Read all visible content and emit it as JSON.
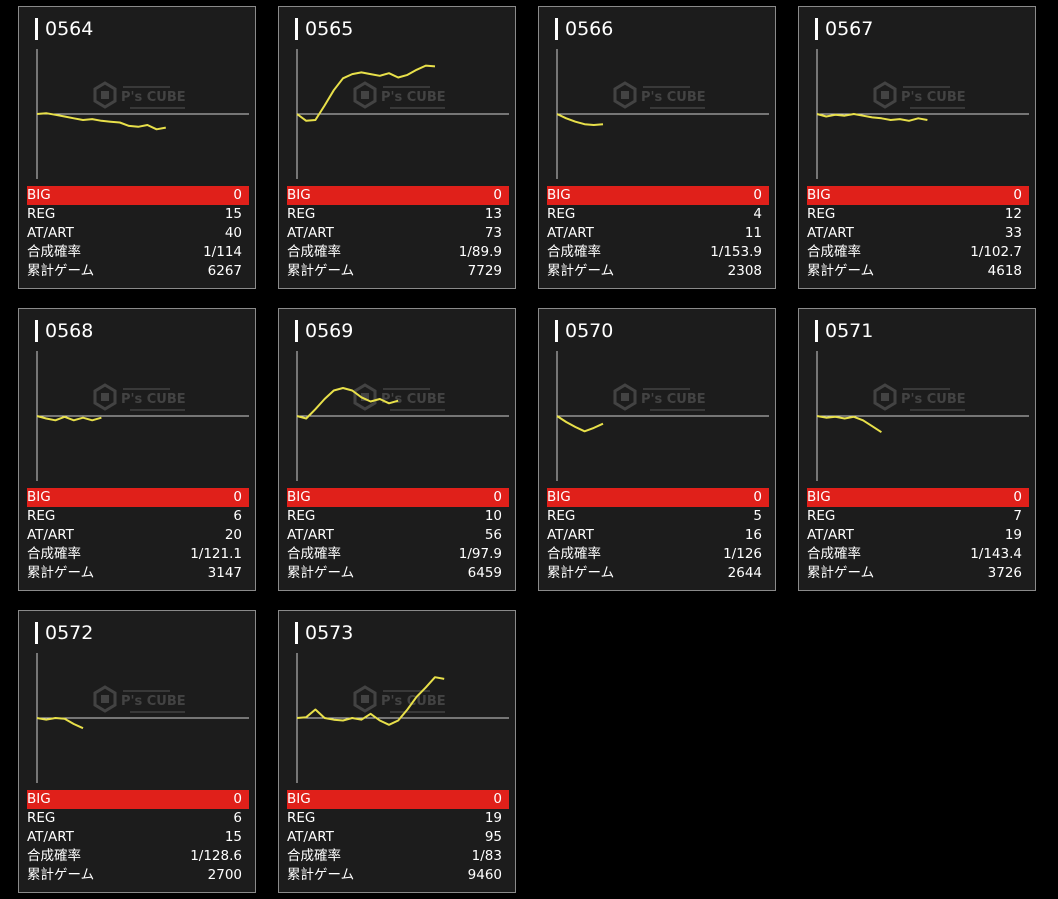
{
  "colors": {
    "background": "#000000",
    "card_bg": "#1c1c1c",
    "card_border": "#8a8a8a",
    "big_row": "#e0201a",
    "graph_line": "#e8e04a",
    "axis": "#cfcfcf",
    "watermark": "#4a4a4a"
  },
  "labels": {
    "big": "BIG",
    "reg": "REG",
    "at": "AT/ART",
    "prob": "合成確率",
    "games": "累計ゲーム"
  },
  "watermark": {
    "icon": "ps-cube-logo",
    "text": "P's CUBE"
  },
  "machines": [
    {
      "id": "0564",
      "big": "0",
      "reg": "15",
      "at": "40",
      "prob": "1/114",
      "games": "6267",
      "trend": [
        0,
        1,
        -1,
        -3,
        -5,
        -7,
        -6,
        -8,
        -9,
        -10,
        -14,
        -15,
        -13,
        -18,
        -16
      ]
    },
    {
      "id": "0565",
      "big": "0",
      "reg": "13",
      "at": "73",
      "prob": "1/89.9",
      "games": "7729",
      "trend": [
        0,
        -8,
        -7,
        10,
        28,
        42,
        47,
        49,
        47,
        45,
        48,
        43,
        46,
        52,
        57,
        56
      ]
    },
    {
      "id": "0566",
      "big": "0",
      "reg": "4",
      "at": "11",
      "prob": "1/153.9",
      "games": "2308",
      "trend": [
        0,
        -5,
        -9,
        -12,
        -13,
        -12
      ]
    },
    {
      "id": "0567",
      "big": "0",
      "reg": "12",
      "at": "33",
      "prob": "1/102.7",
      "games": "4618",
      "trend": [
        0,
        -3,
        -1,
        -2,
        0,
        -2,
        -4,
        -5,
        -7,
        -6,
        -8,
        -5,
        -7
      ]
    },
    {
      "id": "0568",
      "big": "0",
      "reg": "6",
      "at": "20",
      "prob": "1/121.1",
      "games": "3147",
      "trend": [
        0,
        -3,
        -5,
        -1,
        -5,
        -2,
        -5,
        -2
      ]
    },
    {
      "id": "0569",
      "big": "0",
      "reg": "10",
      "at": "56",
      "prob": "1/97.9",
      "games": "6459",
      "trend": [
        0,
        -3,
        8,
        20,
        30,
        33,
        30,
        22,
        17,
        20,
        15,
        18
      ]
    },
    {
      "id": "0570",
      "big": "0",
      "reg": "5",
      "at": "16",
      "prob": "1/126",
      "games": "2644",
      "trend": [
        0,
        -7,
        -13,
        -18,
        -14,
        -9
      ]
    },
    {
      "id": "0571",
      "big": "0",
      "reg": "7",
      "at": "19",
      "prob": "1/143.4",
      "games": "3726",
      "trend": [
        0,
        -2,
        -1,
        -3,
        -1,
        -5,
        -12,
        -19
      ]
    },
    {
      "id": "0572",
      "big": "0",
      "reg": "6",
      "at": "15",
      "prob": "1/128.6",
      "games": "2700",
      "trend": [
        0,
        -2,
        0,
        -1,
        -7,
        -12
      ]
    },
    {
      "id": "0573",
      "big": "0",
      "reg": "19",
      "at": "95",
      "prob": "1/83",
      "games": "9460",
      "trend": [
        0,
        1,
        10,
        0,
        -2,
        -3,
        0,
        -2,
        5,
        -3,
        -8,
        -3,
        10,
        25,
        36,
        48,
        46
      ]
    }
  ]
}
